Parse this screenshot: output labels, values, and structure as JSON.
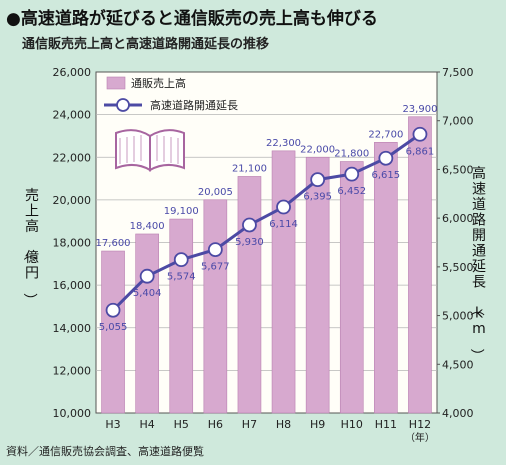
{
  "title": "●高速道路が延びると通信販売の売上高も伸びる",
  "subtitle": "通信販売売上高と高速道路開通延長の推移",
  "source": "資料／通信販売協会調査、高速道路便覧",
  "colors": {
    "background": "#cfe9dc",
    "plot": "#fffef8",
    "bar": "#d7a9cf",
    "bar_stroke": "#b97fb0",
    "line": "#4c4aa4",
    "grid": "#b5b5b5",
    "value_label": "#4a4aa8"
  },
  "chart_data": {
    "type": "bar+line",
    "categories": [
      "H3",
      "H4",
      "H5",
      "H6",
      "H7",
      "H8",
      "H9",
      "H10",
      "H11",
      "H12"
    ],
    "x_unit": "（年）",
    "series": [
      {
        "name": "通販売上高",
        "type": "bar",
        "axis": "left",
        "values": [
          17600,
          18400,
          19100,
          20005,
          21100,
          22300,
          22000,
          21800,
          22700,
          23900
        ],
        "labels": [
          "17,600",
          "18,400",
          "19,100",
          "20,005",
          "21,100",
          "22,300",
          "22,000",
          "21,800",
          "22,700",
          "23,900"
        ]
      },
      {
        "name": "高速道路開通延長",
        "type": "line",
        "axis": "right",
        "values": [
          5055,
          5404,
          5574,
          5677,
          5930,
          6114,
          6395,
          6452,
          6615,
          6861
        ],
        "labels": [
          "5,055",
          "5,404",
          "5,574",
          "5,677",
          "5,930",
          "6,114",
          "6,395",
          "6,452",
          "6,615",
          "6,861"
        ]
      }
    ],
    "y_left": {
      "label": "売上高（億円）",
      "min": 10000,
      "max": 26000,
      "ticks": [
        "10,000",
        "12,000",
        "14,000",
        "16,000",
        "18,000",
        "20,000",
        "22,000",
        "24,000",
        "26,000"
      ]
    },
    "y_right": {
      "label": "高速道路開通延長（km）",
      "min": 4000,
      "max": 7500,
      "ticks": [
        "4,000",
        "4,500",
        "5,000",
        "5,500",
        "6,000",
        "6,500",
        "7,000",
        "7,500"
      ]
    },
    "grid": true,
    "legend_position": "top-left"
  }
}
